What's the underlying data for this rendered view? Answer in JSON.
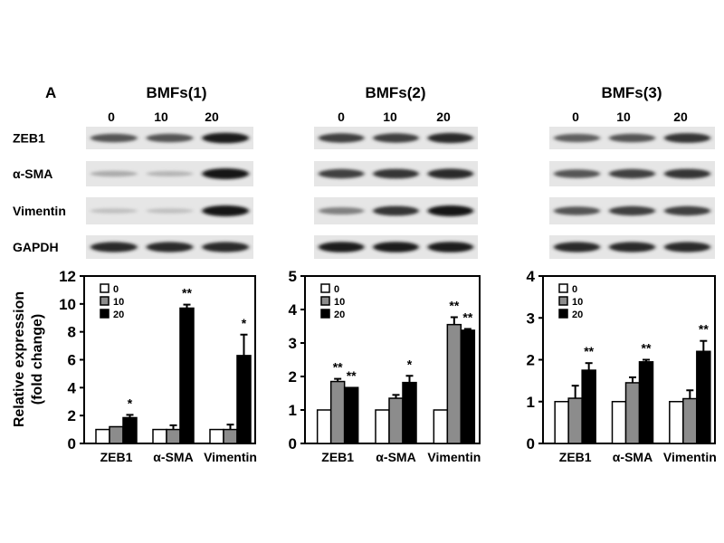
{
  "panel_label": "A",
  "row_labels": [
    "ZEB1",
    "α-SMA",
    "Vimentin",
    "GAPDH"
  ],
  "lane_labels": [
    "0",
    "10",
    "20"
  ],
  "colors": {
    "0": "#ffffff",
    "10": "#8c8c8c",
    "20": "#000000"
  },
  "blots": [
    {
      "title": "BMFs(1)",
      "band_intensity": [
        [
          0.7,
          0.7,
          0.95
        ],
        [
          0.3,
          0.25,
          1.0
        ],
        [
          0.2,
          0.2,
          1.0
        ],
        [
          0.9,
          0.9,
          0.9
        ]
      ]
    },
    {
      "title": "BMFs(2)",
      "band_intensity": [
        [
          0.8,
          0.8,
          0.9
        ],
        [
          0.8,
          0.85,
          0.9
        ],
        [
          0.5,
          0.85,
          1.0
        ],
        [
          0.95,
          0.95,
          0.95
        ]
      ]
    },
    {
      "title": "BMFs(3)",
      "band_intensity": [
        [
          0.65,
          0.7,
          0.85
        ],
        [
          0.7,
          0.8,
          0.85
        ],
        [
          0.7,
          0.8,
          0.8
        ],
        [
          0.9,
          0.9,
          0.9
        ]
      ]
    }
  ],
  "chart_data": [
    {
      "type": "bar",
      "ylabel": "Relative expression\n(fold change)",
      "ylabel_lines": [
        "Relative expression",
        "(fold change)"
      ],
      "ylim": [
        0,
        12
      ],
      "yticks": [
        "0",
        "2",
        "4",
        "6",
        "8",
        "10",
        "12"
      ],
      "categories": [
        "ZEB1",
        "α-SMA",
        "Vimentin"
      ],
      "legend": [
        "0",
        "10",
        "20"
      ],
      "legend_position": "top-left",
      "series": [
        {
          "name": "0",
          "values": [
            1.0,
            1.0,
            1.0
          ],
          "errors": [
            0,
            0,
            0
          ]
        },
        {
          "name": "10",
          "values": [
            1.2,
            1.0,
            1.0
          ],
          "errors": [
            0,
            0.3,
            0.35
          ]
        },
        {
          "name": "20",
          "values": [
            1.85,
            9.7,
            6.3
          ],
          "errors": [
            0.2,
            0.25,
            1.5
          ]
        }
      ],
      "significance": [
        [
          "",
          "",
          "*"
        ],
        [
          "",
          "",
          "**"
        ],
        [
          "",
          "",
          "*"
        ]
      ]
    },
    {
      "type": "bar",
      "ylim": [
        0,
        5
      ],
      "yticks": [
        "0",
        "1",
        "2",
        "3",
        "4",
        "5"
      ],
      "categories": [
        "ZEB1",
        "α-SMA",
        "Vimentin"
      ],
      "legend": [
        "0",
        "10",
        "20"
      ],
      "legend_position": "top-left",
      "series": [
        {
          "name": "0",
          "values": [
            1.0,
            1.0,
            1.0
          ],
          "errors": [
            0,
            0,
            0
          ]
        },
        {
          "name": "10",
          "values": [
            1.85,
            1.35,
            3.55
          ],
          "errors": [
            0.08,
            0.1,
            0.22
          ]
        },
        {
          "name": "20",
          "values": [
            1.67,
            1.82,
            3.38
          ],
          "errors": [
            0,
            0.2,
            0.04
          ]
        }
      ],
      "significance": [
        [
          "",
          "**",
          "**"
        ],
        [
          "",
          "",
          "*"
        ],
        [
          "",
          "**",
          "**"
        ]
      ]
    },
    {
      "type": "bar",
      "ylim": [
        0,
        4
      ],
      "yticks": [
        "0",
        "1",
        "2",
        "3",
        "4"
      ],
      "categories": [
        "ZEB1",
        "α-SMA",
        "Vimentin"
      ],
      "legend": [
        "0",
        "10",
        "20"
      ],
      "legend_position": "top-left",
      "series": [
        {
          "name": "0",
          "values": [
            1.0,
            1.0,
            1.0
          ],
          "errors": [
            0,
            0,
            0
          ]
        },
        {
          "name": "10",
          "values": [
            1.08,
            1.45,
            1.07
          ],
          "errors": [
            0.3,
            0.13,
            0.2
          ]
        },
        {
          "name": "20",
          "values": [
            1.75,
            1.95,
            2.2
          ],
          "errors": [
            0.17,
            0.05,
            0.25
          ]
        }
      ],
      "significance": [
        [
          "",
          "",
          "**"
        ],
        [
          "",
          "",
          "**"
        ],
        [
          "",
          "",
          "**"
        ]
      ]
    }
  ]
}
